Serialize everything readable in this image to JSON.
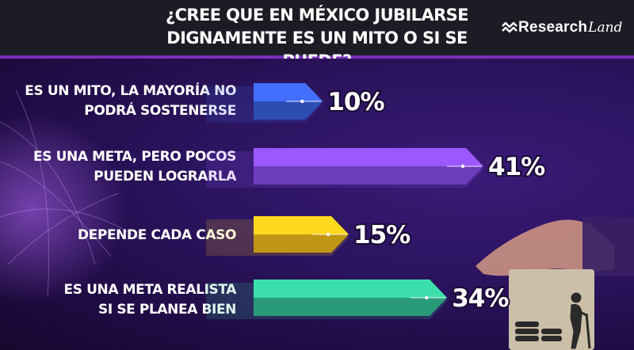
{
  "header": {
    "title_line1": "¿CREE QUE EN MÉXICO JUBILARSE",
    "title_line2": "DIGNAMENTE ES UN MITO O SI SE PUEDE?",
    "logo_word": "Research",
    "logo_script": "Land"
  },
  "chart_data": {
    "type": "bar",
    "orientation": "horizontal",
    "title": "¿CREE QUE EN MÉXICO JUBILARSE DIGNAMENTE ES UN MITO O SI SE PUEDE?",
    "categories": [
      [
        "ES UN MITO, LA MAYORÍA NO",
        "PODRÁ SOSTENERSE"
      ],
      [
        "ES UNA META, PERO POCOS",
        "PUEDEN LOGRARLA"
      ],
      [
        "DEPENDE CADA CASO"
      ],
      [
        "ES UNA META REALISTA",
        "SI SE PLANEA BIEN"
      ]
    ],
    "values": [
      10,
      41,
      15,
      34
    ],
    "value_labels": [
      "10%",
      "41%",
      "15%",
      "34%"
    ],
    "unit": "%",
    "colors": [
      "#3b63e6",
      "#8a4ff0",
      "#f6c21a",
      "#36c79a"
    ],
    "xlim": [
      0,
      41
    ],
    "grid": false,
    "legend": "none"
  }
}
